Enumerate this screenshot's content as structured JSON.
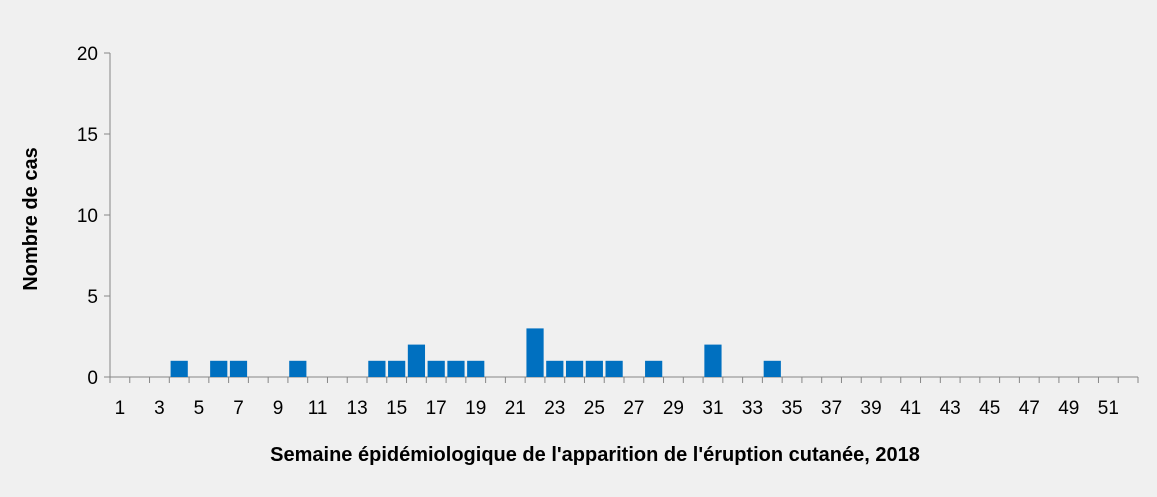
{
  "chart_data": {
    "type": "bar",
    "title": "",
    "xlabel": "Semaine épidémiologique de l'apparition de l'éruption cutanée, 2018",
    "ylabel": "Nombre de cas",
    "ylim": [
      0,
      20
    ],
    "yticks": [
      0,
      5,
      10,
      15,
      20
    ],
    "grid": false,
    "legend": "none",
    "bar_color": "#0070c0",
    "categories": [
      1,
      2,
      3,
      4,
      5,
      6,
      7,
      8,
      9,
      10,
      11,
      12,
      13,
      14,
      15,
      16,
      17,
      18,
      19,
      20,
      21,
      22,
      23,
      24,
      25,
      26,
      27,
      28,
      29,
      30,
      31,
      32,
      33,
      34,
      35,
      36,
      37,
      38,
      39,
      40,
      41,
      42,
      43,
      44,
      45,
      46,
      47,
      48,
      49,
      50,
      51,
      52
    ],
    "tick_labels": [
      "1",
      "",
      "3",
      "",
      "5",
      "",
      "7",
      "",
      "9",
      "",
      "11",
      "",
      "13",
      "",
      "15",
      "",
      "17",
      "",
      "19",
      "",
      "21",
      "",
      "23",
      "",
      "25",
      "",
      "27",
      "",
      "29",
      "",
      "31",
      "",
      "33",
      "",
      "35",
      "",
      "37",
      "",
      "39",
      "",
      "41",
      "",
      "43",
      "",
      "45",
      "",
      "47",
      "",
      "49",
      "",
      "51",
      ""
    ],
    "values": [
      0,
      0,
      0,
      1,
      0,
      1,
      1,
      0,
      0,
      1,
      0,
      0,
      0,
      1,
      1,
      2,
      1,
      1,
      1,
      0,
      0,
      3,
      1,
      1,
      1,
      1,
      0,
      1,
      0,
      0,
      2,
      0,
      0,
      1,
      0,
      0,
      0,
      0,
      0,
      0,
      0,
      0,
      0,
      0,
      0,
      0,
      0,
      0,
      0,
      0,
      0,
      0
    ]
  }
}
